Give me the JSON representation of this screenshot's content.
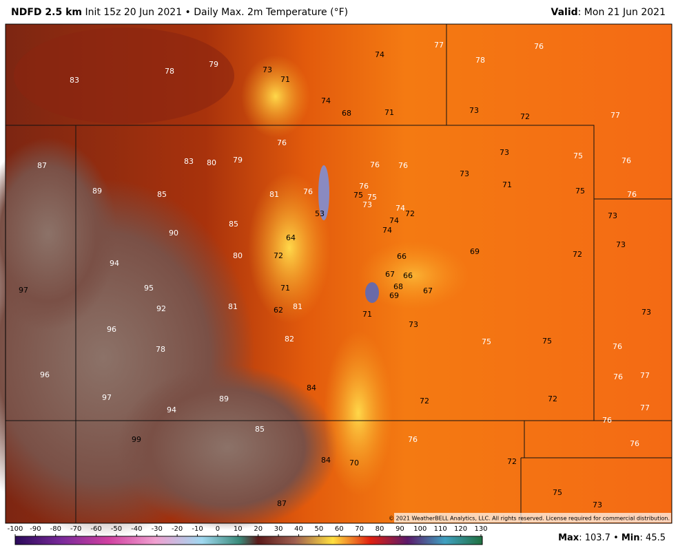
{
  "header": {
    "model": "NDFD 2.5 km",
    "description": "Init 15z 20 Jun 2021 • Daily Max. 2m Temperature (°F)",
    "valid_label": "Valid",
    "valid_value": ": Mon 21 Jun 2021"
  },
  "map": {
    "temperature_labels": [
      83,
      78,
      79,
      73,
      71,
      74,
      77,
      76,
      78,
      74,
      68,
      71,
      73,
      72,
      77,
      76,
      73,
      75,
      76,
      87,
      83,
      80,
      79,
      76,
      76,
      73,
      71,
      75,
      76,
      89,
      85,
      81,
      76,
      76,
      75,
      75,
      73,
      74,
      72,
      74,
      53,
      73,
      90,
      85,
      74,
      64,
      73,
      94,
      80,
      72,
      66,
      69,
      72,
      97,
      95,
      71,
      67,
      66,
      68,
      69,
      67,
      92,
      81,
      62,
      81,
      71,
      73,
      73,
      96,
      82,
      75,
      75,
      76,
      78,
      96,
      84,
      76,
      77,
      97,
      89,
      72,
      72,
      94,
      77,
      76,
      99,
      85,
      76,
      76,
      84,
      70,
      72,
      75,
      73,
      87
    ],
    "copyright": "© 2021 WeatherBELL Analytics, LLC. All rights reserved. License required for commercial distribution."
  },
  "colorbar": {
    "ticks": [
      -100,
      -90,
      -80,
      -70,
      -60,
      -50,
      -40,
      -30,
      -20,
      -10,
      0,
      10,
      20,
      30,
      40,
      50,
      60,
      70,
      80,
      90,
      100,
      110,
      120,
      130
    ]
  },
  "footer": {
    "max_label": "Max",
    "max_value": ": 103.7 • ",
    "min_label": "Min",
    "min_value": ": 45.5"
  }
}
